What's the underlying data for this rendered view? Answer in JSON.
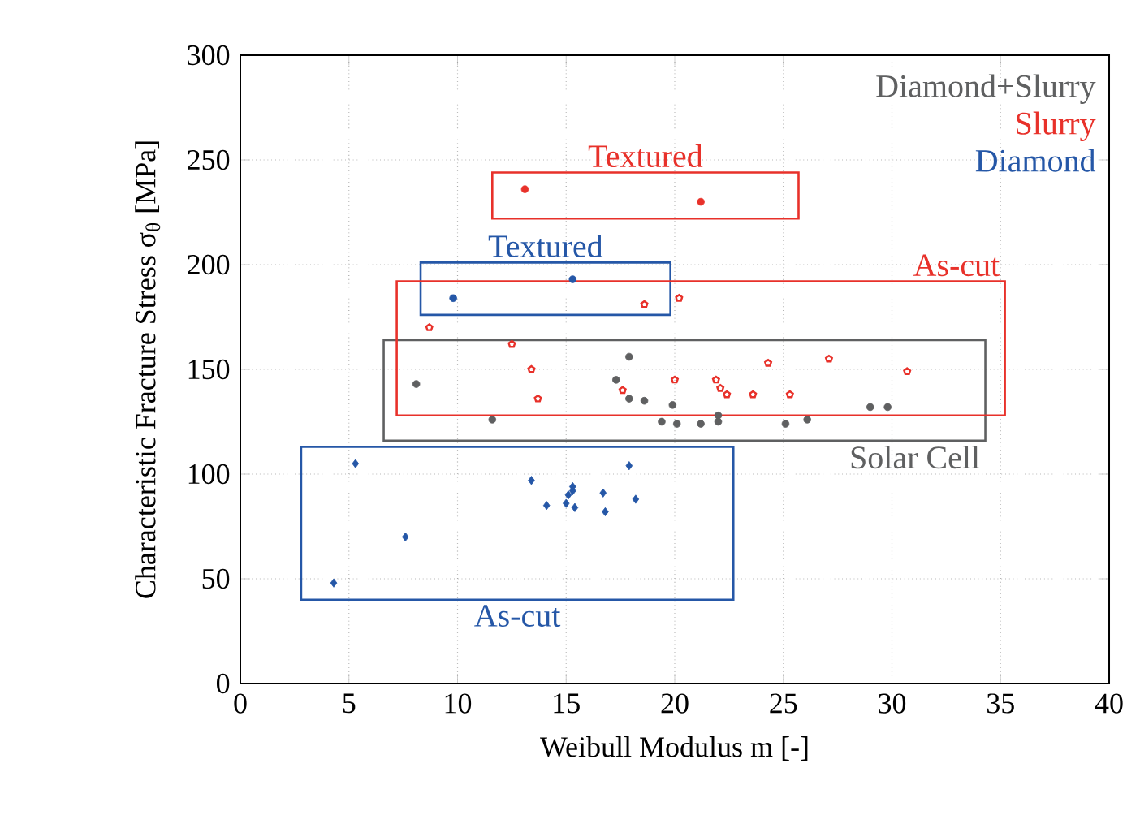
{
  "chart_data": {
    "type": "scatter",
    "xlabel": "Weibull Modulus m [-]",
    "ylabel": "Characteristic Fracture Stress σ$_{θ}$ [MPa]",
    "xlim": [
      0,
      40
    ],
    "ylim": [
      0,
      300
    ],
    "xticks": [
      0,
      5,
      10,
      15,
      20,
      25,
      30,
      35,
      40
    ],
    "yticks": [
      0,
      50,
      100,
      150,
      200,
      250,
      300
    ],
    "grid": true,
    "legend": "top right",
    "series": [
      {
        "color": "#e8312a",
        "marker": "circle",
        "x": [
          13.1,
          21.2
        ],
        "values": [
          236,
          230
        ]
      },
      {
        "color": "#2557a7",
        "marker": "circle",
        "x": [
          9.8,
          15.3
        ],
        "values": [
          184,
          193
        ]
      },
      {
        "name": "Diamond+Slurry",
        "color": "#5f6061",
        "marker": "circle",
        "x": [
          8.1,
          11.6,
          17.9,
          17.3,
          17.9,
          18.6,
          19.9,
          19.4,
          20.1,
          21.2,
          22.0,
          22.0,
          25.1,
          26.1,
          29.0,
          29.8
        ],
        "values": [
          143,
          126,
          156,
          145,
          136,
          135,
          133,
          125,
          124,
          124,
          128,
          125,
          124,
          126,
          132,
          132
        ]
      },
      {
        "name": "Slurry",
        "color": "#e8312a",
        "x": [
          8.7,
          18.6,
          20.2,
          12.5,
          13.4,
          13.7,
          17.6,
          20.0,
          21.9,
          22.1,
          22.4,
          23.6,
          24.3,
          25.3,
          27.1,
          30.7
        ],
        "values": [
          170,
          181,
          184,
          162,
          150,
          136,
          140,
          145,
          145,
          141,
          138,
          138,
          153,
          138,
          155,
          149
        ]
      },
      {
        "name": "Diamond",
        "color": "#2557a7",
        "marker": "diamond",
        "x": [
          5.3,
          4.3,
          7.6,
          13.4,
          14.1,
          15.0,
          15.1,
          15.3,
          15.3,
          15.4,
          16.7,
          16.8,
          17.9,
          18.2
        ],
        "values": [
          105,
          48,
          70,
          97,
          85,
          86,
          90,
          92,
          94,
          84,
          91,
          82,
          104,
          88
        ]
      }
    ],
    "annotations": [
      "Textured",
      "Textured",
      "Solar Cell",
      "As-cut",
      "As-cut"
    ]
  }
}
